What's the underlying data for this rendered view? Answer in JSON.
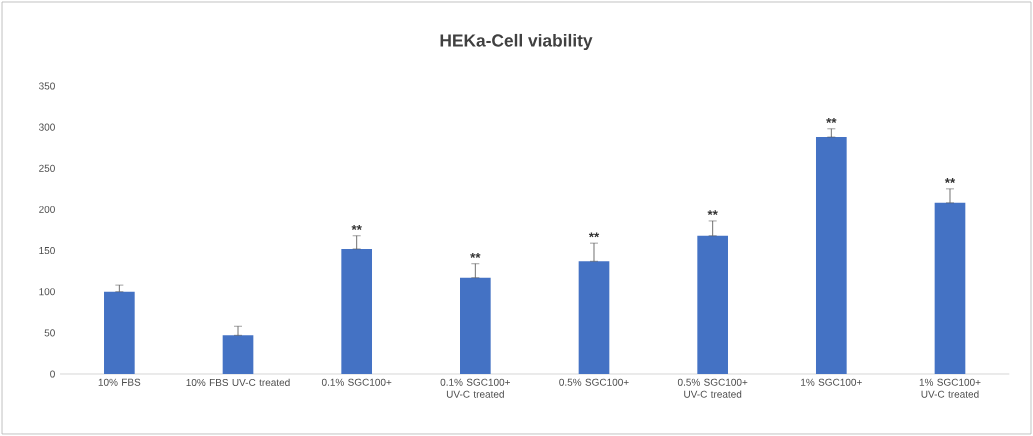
{
  "chart_data": {
    "type": "bar",
    "title": "HEKa-Cell viability",
    "categories": [
      "10% FBS",
      "10% FBS UV-C treated",
      "0.1% SGC100+",
      "0.1% SGC100+ UV-C treated",
      "0.5% SGC100+",
      "0.5% SGC100+ UV-C treated",
      "1% SGC100+",
      "1% SGC100+ UV-C treated"
    ],
    "values": [
      100,
      47,
      152,
      117,
      137,
      168,
      288,
      208
    ],
    "errors": [
      [
        100,
        108
      ],
      [
        47,
        58
      ],
      [
        152,
        168
      ],
      [
        117,
        134
      ],
      [
        137,
        159
      ],
      [
        168,
        186
      ],
      [
        288,
        298
      ],
      [
        208,
        225
      ]
    ],
    "color": "#4472c4",
    "ylim": [
      0,
      350
    ],
    "yticks": [
      0,
      50,
      100,
      150,
      200,
      250,
      300,
      350
    ],
    "annotations": [
      {
        "text": "**",
        "x": "0.1% SGC100+",
        "y": 168
      },
      {
        "text": "**",
        "x": "0.1% SGC100+ UV-C treated",
        "y": 134
      },
      {
        "text": "**",
        "x": "0.5% SGC100+",
        "y": 159
      },
      {
        "text": "**",
        "x": "0.5% SGC100+ UV-C treated",
        "y": 186
      },
      {
        "text": "**",
        "x": "1% SGC100+",
        "y": 298
      },
      {
        "text": "**",
        "x": "1% SGC100+ UV-C treated",
        "y": 225
      }
    ]
  }
}
